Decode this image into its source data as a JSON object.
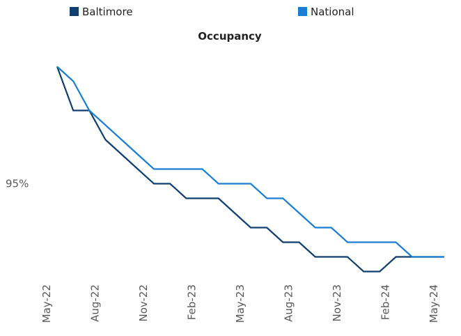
{
  "chart_data": {
    "type": "line",
    "title": "Occupancy",
    "categories": [
      "May-22",
      null,
      null,
      "Aug-22",
      null,
      null,
      "Nov-22",
      null,
      null,
      "Feb-23",
      null,
      null,
      "May-23",
      null,
      null,
      "Aug-23",
      null,
      null,
      "Nov-23",
      null,
      null,
      "Feb-24",
      null,
      null,
      "May-24"
    ],
    "series": [
      {
        "name": "Baltimore",
        "color": "#0e3f70",
        "values": [
          95.8,
          95.5,
          95.5,
          95.3,
          95.2,
          95.1,
          95.0,
          95.0,
          94.9,
          94.9,
          94.9,
          94.8,
          94.7,
          94.7,
          94.6,
          94.6,
          94.5,
          94.5,
          94.5,
          94.4,
          94.4,
          94.5,
          94.5,
          94.5,
          94.5
        ]
      },
      {
        "name": "National",
        "color": "#1a7fd4",
        "values": [
          95.8,
          95.7,
          95.5,
          95.4,
          95.3,
          95.2,
          95.1,
          95.1,
          95.1,
          95.1,
          95.0,
          95.0,
          95.0,
          94.9,
          94.9,
          94.8,
          94.7,
          94.7,
          94.6,
          94.6,
          94.6,
          94.6,
          94.5,
          94.5,
          94.5
        ]
      }
    ],
    "ylim": [
      94.35,
      95.85
    ],
    "yticks": [
      {
        "value": 95,
        "label": "95%"
      }
    ],
    "legend": "top"
  }
}
